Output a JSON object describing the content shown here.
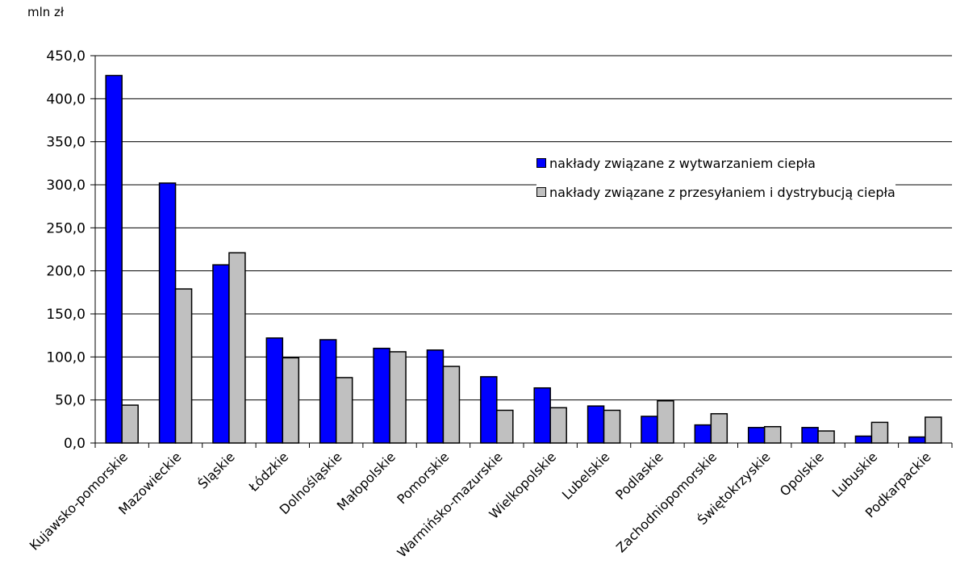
{
  "chart_data": {
    "type": "bar",
    "unit_label": "mln zł",
    "categories": [
      "Kujawsko-pomorskie",
      "Mazowieckie",
      "Śląskie",
      "Łódzkie",
      "Dolnośląskie",
      "Małopolskie",
      "Pomorskie",
      "Warmińsko-mazurskie",
      "Wielkopolskie",
      "Lubelskie",
      "Podlaskie",
      "Zachodniopomorskie",
      "Świętokrzyskie",
      "Opolskie",
      "Lubuskie",
      "Podkarpackie"
    ],
    "series": [
      {
        "name": "nakłady związane z wytwarzaniem ciepła",
        "color": "#0000ff",
        "values": [
          427,
          302,
          207,
          122,
          120,
          110,
          108,
          77,
          64,
          43,
          31,
          21,
          18,
          18,
          8,
          7
        ]
      },
      {
        "name": "nakłady związane z przesyłaniem i dystrybucją ciepła",
        "color": "#c0c0c0",
        "values": [
          44,
          179,
          221,
          99,
          76,
          106,
          89,
          38,
          41,
          38,
          49,
          34,
          19,
          14,
          24,
          30
        ]
      }
    ],
    "ylim": [
      0,
      450
    ],
    "yticks": [
      "0,0",
      "50,0",
      "100,0",
      "150,0",
      "200,0",
      "250,0",
      "300,0",
      "350,0",
      "400,0",
      "450,0"
    ],
    "grid": true,
    "legend_position": "right"
  }
}
